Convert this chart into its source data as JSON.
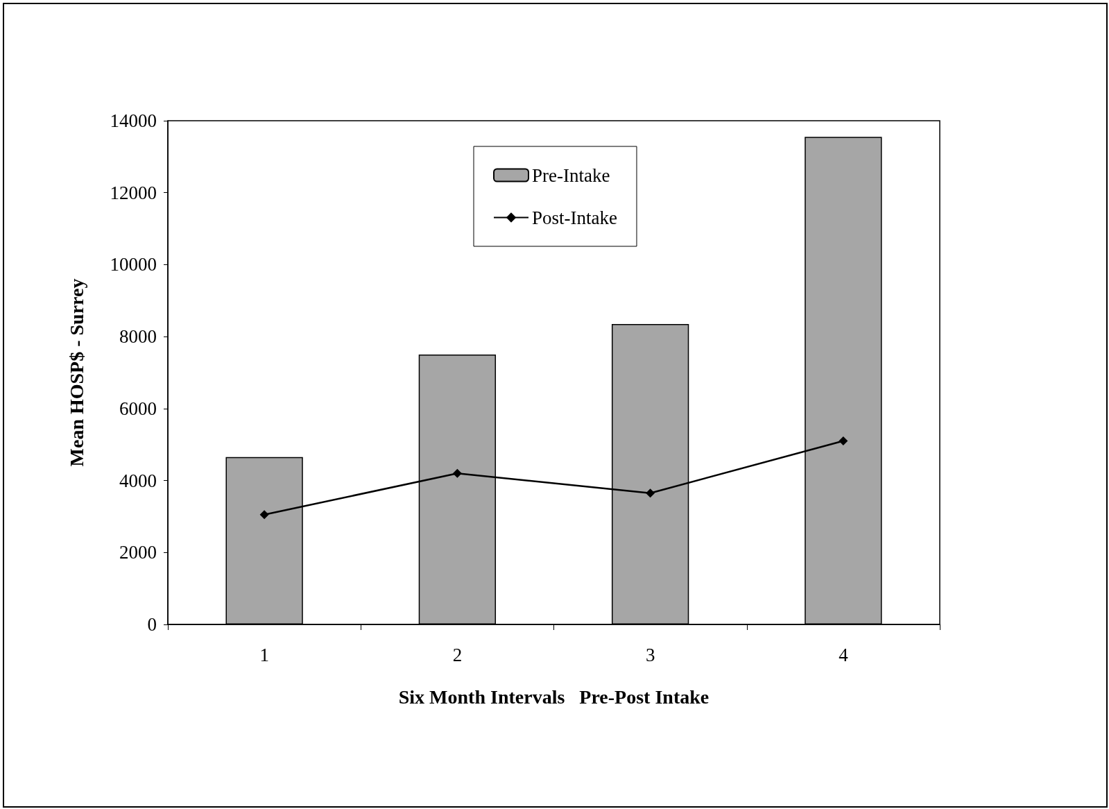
{
  "chart_data": {
    "type": "bar",
    "xlabel": "Six Month Intervals   Pre-Post Intake",
    "ylabel": "Mean HOSP$ - Surrey",
    "categories": [
      "1",
      "2",
      "3",
      "4"
    ],
    "series": [
      {
        "name": "Pre-Intake",
        "color": "#a6a6a6",
        "values": [
          4650,
          7500,
          8350,
          13550
        ]
      },
      {
        "name": "Post-Intake",
        "type": "line",
        "color": "#000000",
        "values": [
          3050,
          4200,
          3650,
          5100
        ]
      }
    ],
    "ylim": [
      0,
      14000
    ],
    "yticks": [
      0,
      2000,
      4000,
      6000,
      8000,
      10000,
      12000,
      14000
    ],
    "grid": false,
    "legend": "top",
    "marker": "diamond",
    "line_style": "solid"
  }
}
